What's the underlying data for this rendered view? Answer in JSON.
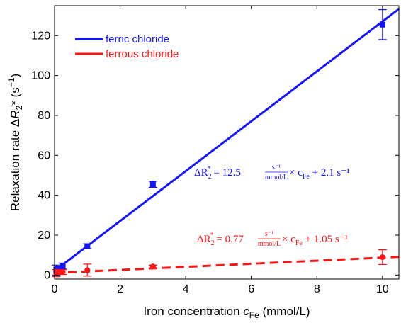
{
  "chart_data": {
    "type": "scatter",
    "title": "",
    "xlabel": {
      "main": "Iron concentration ",
      "var": "c",
      "sub": "Fe",
      "unit": " (mmol/L)"
    },
    "ylabel": {
      "main": "Relaxation rate ",
      "delta": "Δ",
      "var": "R",
      "sub": "2",
      "star": "*",
      "unit": " (s",
      "sup": "−1",
      "close": ")"
    },
    "xlim": [
      0,
      10.5
    ],
    "ylim": [
      -2,
      135
    ],
    "xticks": [
      0,
      2,
      4,
      6,
      8,
      10
    ],
    "yticks": [
      0,
      20,
      40,
      60,
      80,
      100,
      120
    ],
    "grid": false,
    "legend_position": "top-left",
    "series": [
      {
        "name": "ferric chloride",
        "color": "#1414ff",
        "marker": "square",
        "line_style": "solid",
        "x": [
          0.05,
          0.1,
          0.25,
          1.0,
          3.0,
          10.0
        ],
        "y": [
          2.5,
          3.0,
          4.5,
          14.5,
          45.5,
          125.5
        ],
        "err": [
          2.5,
          1.0,
          1.5,
          1.2,
          1.5,
          7.5
        ],
        "fit": {
          "slope": 12.5,
          "intercept": 2.1
        },
        "equation": {
          "lhs": "ΔR",
          "lhs_sub": "2",
          "lhs_sup": "*",
          "equals": " = 12.5",
          "frac_num": "s⁻¹",
          "frac_den": "mmol/L",
          "times": " × c",
          "times_sub": "Fe",
          "tail": " + 2.1 s⁻¹"
        }
      },
      {
        "name": "ferrous chloride",
        "color": "#ff1414",
        "marker": "circle",
        "line_style": "dashed",
        "x": [
          0.05,
          0.1,
          0.25,
          1.0,
          3.0,
          10.0
        ],
        "y": [
          1.0,
          1.5,
          1.5,
          2.5,
          4.3,
          9.0
        ],
        "err": [
          1.8,
          1.0,
          1.2,
          3.0,
          0.7,
          3.7
        ],
        "fit": {
          "slope": 0.77,
          "intercept": 1.05
        },
        "equation": {
          "lhs": "ΔR",
          "lhs_sub": "2",
          "lhs_sup": "*",
          "equals": " = 0.77",
          "frac_num": "s⁻¹",
          "frac_den": "mmol/L",
          "times": " × c",
          "times_sub": "Fe",
          "tail": " + 1.05 s⁻¹"
        }
      }
    ]
  }
}
